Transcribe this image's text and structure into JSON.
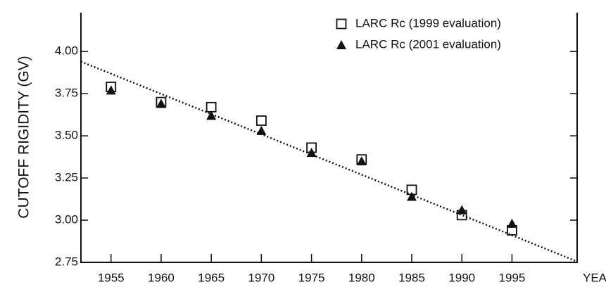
{
  "chart_data": {
    "type": "scatter",
    "xlabel": "YEAR",
    "ylabel": "CUTOFF RIGIDITY (GV)",
    "xlim": [
      1952,
      2001.5
    ],
    "ylim": [
      2.75,
      4.23
    ],
    "xticks": [
      1955,
      1960,
      1965,
      1970,
      1975,
      1980,
      1985,
      1990,
      1995
    ],
    "yticks": [
      {
        "value": 2.75,
        "label": "2.75"
      },
      {
        "value": 3.0,
        "label": "3.00"
      },
      {
        "value": 3.25,
        "label": "3.25"
      },
      {
        "value": 3.5,
        "label": "3.50"
      },
      {
        "value": 3.75,
        "label": "3.75"
      },
      {
        "value": 4.0,
        "label": "4.00"
      }
    ],
    "legend": "upper right",
    "series": [
      {
        "name": "LARC Rc (1999 evaluation)",
        "marker": "square",
        "color": "#111111",
        "x": [
          1955,
          1960,
          1965,
          1970,
          1975,
          1980,
          1985,
          1990,
          1995
        ],
        "values": [
          3.79,
          3.7,
          3.67,
          3.59,
          3.43,
          3.36,
          3.18,
          3.03,
          2.94
        ]
      },
      {
        "name": "LARC Rc (2001 evaluation)",
        "marker": "triangle",
        "color": "#111111",
        "x": [
          1955,
          1960,
          1965,
          1970,
          1975,
          1980,
          1985,
          1990,
          1995
        ],
        "values": [
          3.77,
          3.69,
          3.62,
          3.53,
          3.4,
          3.35,
          3.14,
          3.06,
          2.98
        ]
      }
    ],
    "trend_line": {
      "x": [
        1952,
        2001.5
      ],
      "values": [
        3.94,
        2.755
      ],
      "color": "#111111"
    }
  }
}
